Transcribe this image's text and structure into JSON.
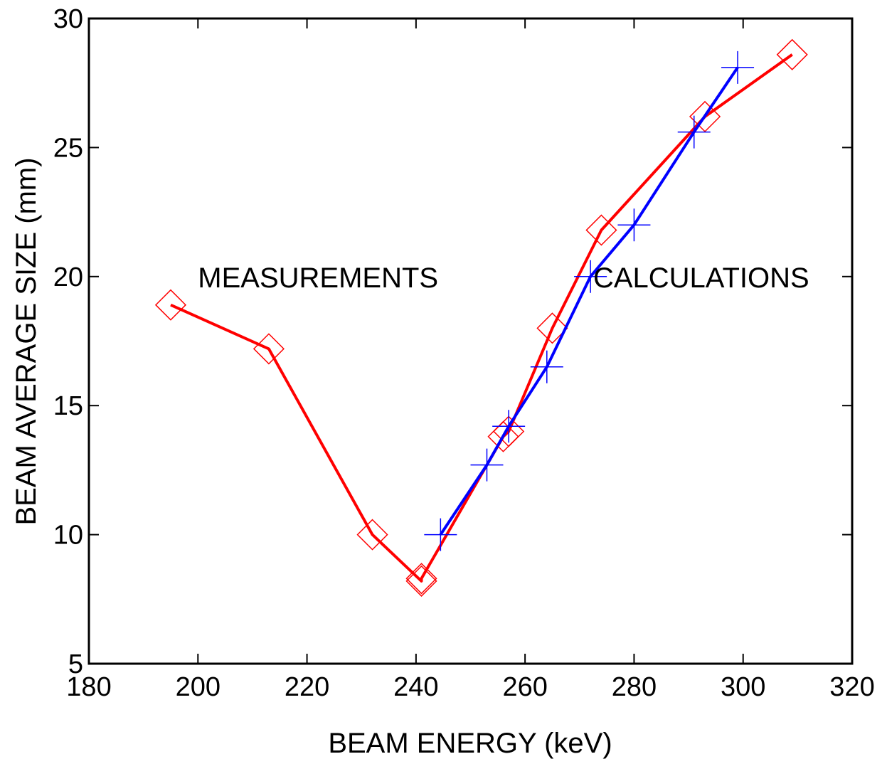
{
  "chart_data": {
    "type": "line",
    "title": "",
    "xlabel": "BEAM ENERGY (keV)",
    "ylabel": "BEAM AVERAGE SIZE (mm)",
    "xlim": [
      180,
      320
    ],
    "ylim": [
      5,
      30
    ],
    "xticks": [
      "180",
      "200",
      "220",
      "240",
      "260",
      "280",
      "300",
      "320"
    ],
    "yticks": [
      "5",
      "10",
      "15",
      "20",
      "25",
      "30"
    ],
    "grid": false,
    "legend": "none",
    "series": [
      {
        "color": "#ff0000",
        "marker": "diamond",
        "x": [
          195,
          213,
          232,
          241,
          241,
          256,
          257,
          265,
          274,
          293,
          309
        ],
        "y": [
          18.9,
          17.2,
          10.0,
          8.2,
          8.3,
          13.8,
          14.0,
          18.0,
          21.8,
          26.2,
          28.6
        ]
      },
      {
        "color": "#0000ff",
        "marker": "plus",
        "x": [
          244.5,
          253,
          257,
          264,
          272,
          280,
          291,
          299
        ],
        "y": [
          10.0,
          12.7,
          14.2,
          16.5,
          20.0,
          22.0,
          25.6,
          28.1
        ]
      }
    ],
    "annotations": [
      {
        "text": "MEASUREMENTS",
        "x": 200,
        "y": 20
      },
      {
        "text": "CALCULATIONS",
        "x": 272.5,
        "y": 20
      }
    ]
  }
}
